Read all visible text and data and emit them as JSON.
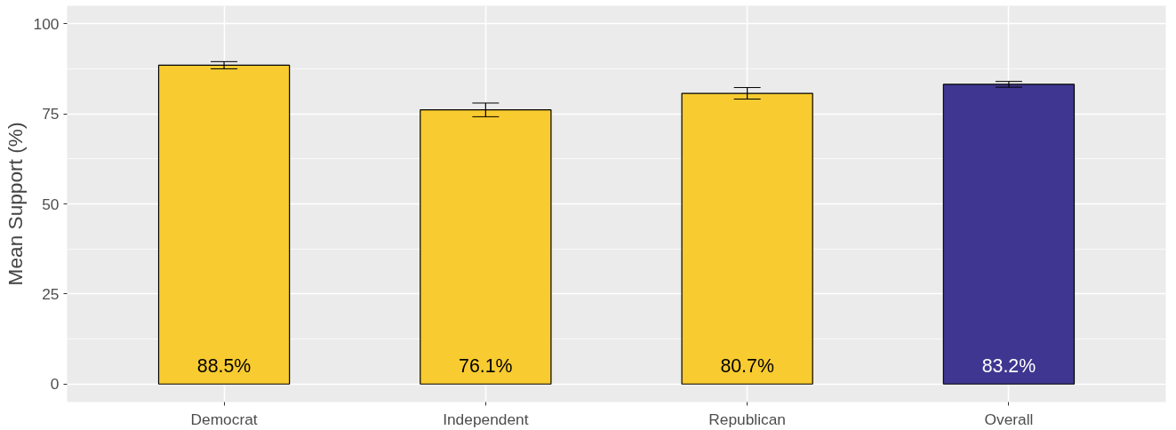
{
  "chart_data": {
    "type": "bar",
    "ylabel": "Mean Support (%)",
    "categories": [
      "Democrat",
      "Independent",
      "Republican",
      "Overall"
    ],
    "values": [
      88.5,
      76.1,
      80.7,
      83.2
    ],
    "colors": [
      "#f8cb30",
      "#f8cb30",
      "#f8cb30",
      "#3e3690"
    ],
    "errors": [
      1.0,
      1.9,
      1.6,
      0.8
    ],
    "value_labels": [
      "88.5%",
      "76.1%",
      "80.7%",
      "83.2%"
    ],
    "ylim": [
      -5,
      105
    ],
    "yticks": [
      0,
      25,
      50,
      75,
      100
    ],
    "grid": true
  }
}
